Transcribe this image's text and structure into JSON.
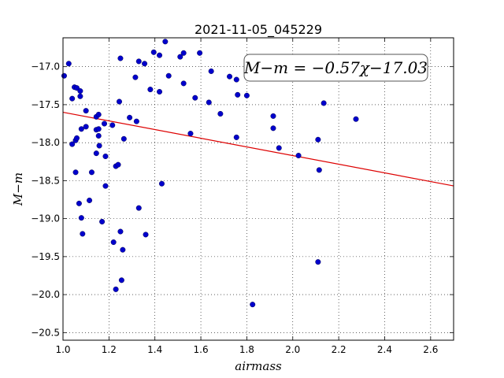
{
  "chart_data": {
    "type": "scatter",
    "title": "2021-11-05_045229",
    "xlabel": "airmass",
    "ylabel": "M−m",
    "xlim": [
      1.0,
      2.7
    ],
    "ylim": [
      -20.6,
      -16.62
    ],
    "y_inverted": true,
    "grid": true,
    "xticks": [
      1.0,
      1.2,
      1.4,
      1.6,
      1.8,
      2.0,
      2.2,
      2.4,
      2.6
    ],
    "xtick_labels": [
      "1.0",
      "1.2",
      "1.4",
      "1.6",
      "1.8",
      "2.0",
      "2.2",
      "2.4",
      "2.6"
    ],
    "yticks": [
      -17.0,
      -17.5,
      -18.0,
      -18.5,
      -19.0,
      -19.5,
      -20.0,
      -20.5
    ],
    "ytick_labels": [
      "−17.0",
      "−17.5",
      "−18.0",
      "−18.5",
      "−19.0",
      "−19.5",
      "−20.0",
      "−20.5"
    ],
    "annotation": "M−m = −0.57χ−17.03",
    "fit": {
      "slope": -0.57,
      "intercept": -17.03,
      "color": "#dd0000"
    },
    "marker_color": "#0000cc",
    "points": [
      {
        "x": 1.005,
        "y": -17.12
      },
      {
        "x": 1.025,
        "y": -16.96
      },
      {
        "x": 1.04,
        "y": -17.42
      },
      {
        "x": 1.05,
        "y": -17.27
      },
      {
        "x": 1.06,
        "y": -17.28
      },
      {
        "x": 1.075,
        "y": -17.32
      },
      {
        "x": 1.075,
        "y": -17.39
      },
      {
        "x": 1.1,
        "y": -17.58
      },
      {
        "x": 1.04,
        "y": -18.02
      },
      {
        "x": 1.055,
        "y": -17.97
      },
      {
        "x": 1.06,
        "y": -17.94
      },
      {
        "x": 1.08,
        "y": -17.82
      },
      {
        "x": 1.1,
        "y": -17.79
      },
      {
        "x": 1.055,
        "y": -18.39
      },
      {
        "x": 1.07,
        "y": -18.8
      },
      {
        "x": 1.08,
        "y": -18.99
      },
      {
        "x": 1.085,
        "y": -19.2
      },
      {
        "x": 1.115,
        "y": -18.76
      },
      {
        "x": 1.125,
        "y": -18.39
      },
      {
        "x": 1.145,
        "y": -17.66
      },
      {
        "x": 1.155,
        "y": -17.63
      },
      {
        "x": 1.145,
        "y": -17.83
      },
      {
        "x": 1.155,
        "y": -17.82
      },
      {
        "x": 1.155,
        "y": -17.91
      },
      {
        "x": 1.158,
        "y": -18.04
      },
      {
        "x": 1.145,
        "y": -18.14
      },
      {
        "x": 1.18,
        "y": -17.75
      },
      {
        "x": 1.185,
        "y": -18.18
      },
      {
        "x": 1.185,
        "y": -18.57
      },
      {
        "x": 1.17,
        "y": -19.04
      },
      {
        "x": 1.215,
        "y": -17.77
      },
      {
        "x": 1.245,
        "y": -17.46
      },
      {
        "x": 1.25,
        "y": -16.89
      },
      {
        "x": 1.23,
        "y": -18.31
      },
      {
        "x": 1.24,
        "y": -18.29
      },
      {
        "x": 1.22,
        "y": -19.31
      },
      {
        "x": 1.25,
        "y": -19.17
      },
      {
        "x": 1.26,
        "y": -19.41
      },
      {
        "x": 1.255,
        "y": -19.81
      },
      {
        "x": 1.23,
        "y": -19.93
      },
      {
        "x": 1.265,
        "y": -17.95
      },
      {
        "x": 1.29,
        "y": -17.67
      },
      {
        "x": 1.315,
        "y": -17.14
      },
      {
        "x": 1.32,
        "y": -17.72
      },
      {
        "x": 1.33,
        "y": -16.93
      },
      {
        "x": 1.355,
        "y": -16.96
      },
      {
        "x": 1.33,
        "y": -18.86
      },
      {
        "x": 1.36,
        "y": -19.21
      },
      {
        "x": 1.38,
        "y": -17.3
      },
      {
        "x": 1.395,
        "y": -16.81
      },
      {
        "x": 1.42,
        "y": -16.85
      },
      {
        "x": 1.42,
        "y": -17.33
      },
      {
        "x": 1.43,
        "y": -18.54
      },
      {
        "x": 1.445,
        "y": -16.67
      },
      {
        "x": 1.46,
        "y": -17.12
      },
      {
        "x": 1.51,
        "y": -16.87
      },
      {
        "x": 1.525,
        "y": -16.82
      },
      {
        "x": 1.525,
        "y": -17.22
      },
      {
        "x": 1.555,
        "y": -17.88
      },
      {
        "x": 1.575,
        "y": -17.41
      },
      {
        "x": 1.595,
        "y": -16.82
      },
      {
        "x": 1.635,
        "y": -17.47
      },
      {
        "x": 1.645,
        "y": -17.06
      },
      {
        "x": 1.685,
        "y": -17.62
      },
      {
        "x": 1.725,
        "y": -17.13
      },
      {
        "x": 1.755,
        "y": -17.17
      },
      {
        "x": 1.76,
        "y": -17.37
      },
      {
        "x": 1.755,
        "y": -17.93
      },
      {
        "x": 1.8,
        "y": -17.38
      },
      {
        "x": 1.825,
        "y": -20.13
      },
      {
        "x": 1.915,
        "y": -17.65
      },
      {
        "x": 1.915,
        "y": -17.81
      },
      {
        "x": 1.94,
        "y": -18.07
      },
      {
        "x": 2.025,
        "y": -18.17
      },
      {
        "x": 2.11,
        "y": -17.96
      },
      {
        "x": 2.115,
        "y": -18.36
      },
      {
        "x": 2.11,
        "y": -19.57
      },
      {
        "x": 2.135,
        "y": -17.48
      },
      {
        "x": 2.275,
        "y": -17.69
      }
    ]
  }
}
